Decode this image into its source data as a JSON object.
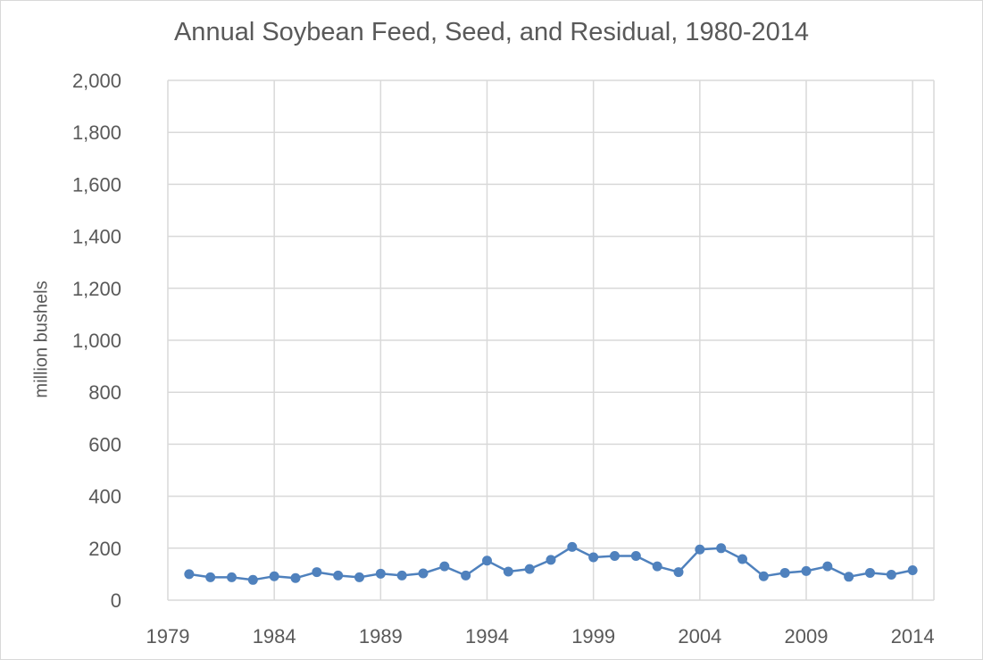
{
  "chart_data": {
    "type": "line",
    "title": "Annual Soybean Feed, Seed, and Residual, 1980-2014",
    "xlabel": "",
    "ylabel": "million bushels",
    "xlim": [
      1979,
      2015
    ],
    "ylim": [
      0,
      2000
    ],
    "x_ticks": [
      1979,
      1984,
      1989,
      1994,
      1999,
      2004,
      2009,
      2014
    ],
    "x_tick_labels": [
      "1979",
      "1984",
      "1989",
      "1994",
      "1999",
      "2004",
      "2009",
      "2014"
    ],
    "y_ticks": [
      0,
      200,
      400,
      600,
      800,
      1000,
      1200,
      1400,
      1600,
      1800,
      2000
    ],
    "y_tick_labels": [
      "0",
      "200",
      "400",
      "600",
      "800",
      "1,000",
      "1,200",
      "1,400",
      "1,600",
      "1,800",
      "2,000"
    ],
    "grid": true,
    "legend": "none",
    "series": [
      {
        "color": "#4f81bd",
        "x": [
          1980,
          1981,
          1982,
          1983,
          1984,
          1985,
          1986,
          1987,
          1988,
          1989,
          1990,
          1991,
          1992,
          1993,
          1994,
          1995,
          1996,
          1997,
          1998,
          1999,
          2000,
          2001,
          2002,
          2003,
          2004,
          2005,
          2006,
          2007,
          2008,
          2009,
          2010,
          2011,
          2012,
          2013,
          2014
        ],
        "values": [
          100,
          88,
          88,
          78,
          92,
          85,
          108,
          95,
          88,
          102,
          95,
          103,
          130,
          95,
          152,
          110,
          120,
          155,
          205,
          165,
          170,
          170,
          130,
          108,
          195,
          200,
          158,
          92,
          105,
          112,
          130,
          90,
          105,
          98,
          115
        ]
      }
    ]
  }
}
